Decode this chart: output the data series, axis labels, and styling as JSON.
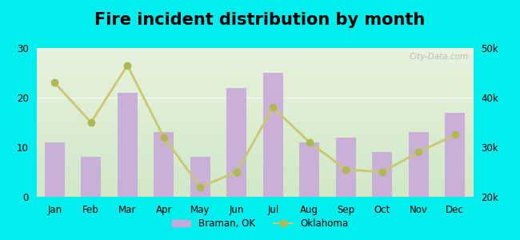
{
  "title": "Fire incident distribution by month",
  "months": [
    "Jan",
    "Feb",
    "Mar",
    "Apr",
    "May",
    "Jun",
    "Jul",
    "Aug",
    "Sep",
    "Oct",
    "Nov",
    "Dec"
  ],
  "braman_values": [
    11,
    8,
    21,
    13,
    8,
    22,
    25,
    11,
    12,
    9,
    13,
    17
  ],
  "oklahoma_values": [
    43000,
    35000,
    46500,
    32000,
    22000,
    25000,
    38000,
    31000,
    25500,
    25000,
    29000,
    32500
  ],
  "bar_color": "#c8a8d8",
  "line_color": "#c8c870",
  "line_marker_color": "#b0b855",
  "background_color": "#00eeee",
  "plot_bg_top": "#e8f2dc",
  "plot_bg_bottom": "#d0e8c8",
  "title_fontsize": 15,
  "left_ylim": [
    0,
    30
  ],
  "right_ylim": [
    20000,
    50000
  ],
  "left_yticks": [
    0,
    10,
    20,
    30
  ],
  "right_yticks": [
    20000,
    30000,
    40000,
    50000
  ],
  "right_yticklabels": [
    "20k",
    "30k",
    "40k",
    "50k"
  ],
  "legend_braman": "Braman, OK",
  "legend_oklahoma": "Oklahoma",
  "watermark": "City-Data.com"
}
